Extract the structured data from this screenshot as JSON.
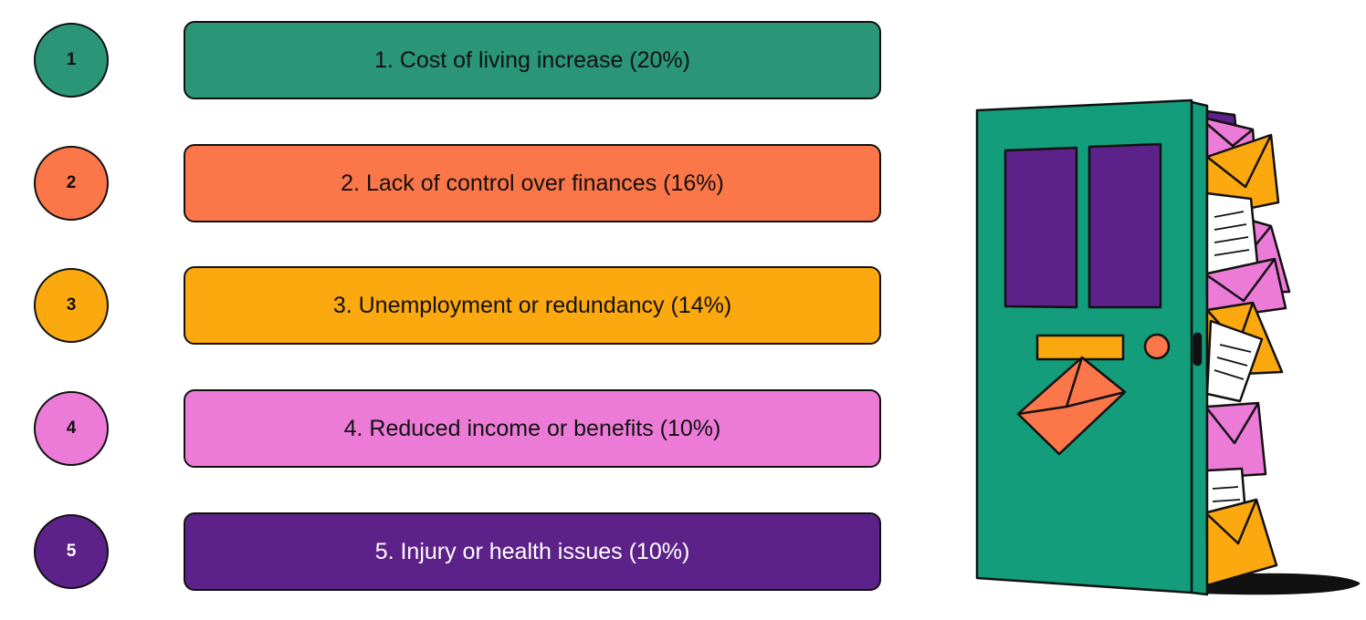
{
  "items": [
    {
      "number": "1",
      "label": "1. Cost of living increase (20%)",
      "percent": 20,
      "color": "#2a9677"
    },
    {
      "number": "2",
      "label": "2. Lack of control over finances (16%)",
      "percent": 16,
      "color": "#fb7649"
    },
    {
      "number": "3",
      "label": "3. Unemployment or redundancy (14%)",
      "percent": 14,
      "color": "#fca80f"
    },
    {
      "number": "4",
      "label": "4. Reduced income or benefits (10%)",
      "percent": 10,
      "color": "#ec7bd7"
    },
    {
      "number": "5",
      "label": "5. Injury or health issues (10%)",
      "percent": 10,
      "color": "#5d2289"
    }
  ],
  "illustration": {
    "icon": "door-with-overflowing-mail-icon"
  }
}
